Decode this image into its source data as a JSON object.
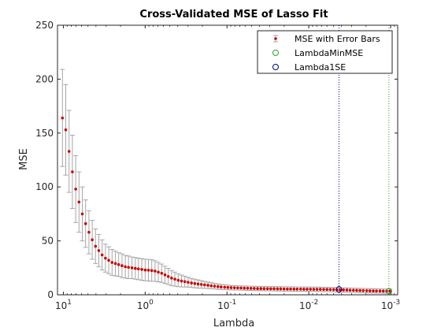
{
  "chart_data": {
    "type": "scatter",
    "title": "Cross-Validated MSE of Lasso Fit",
    "xlabel": "Lambda",
    "ylabel": "MSE",
    "x_scale": "log",
    "x_reversed": true,
    "xlim": [
      11.8,
      0.00082
    ],
    "ylim": [
      0,
      250
    ],
    "yticks": [
      0,
      50,
      100,
      150,
      200,
      250
    ],
    "xticks": [
      {
        "value": 10,
        "base": "10",
        "exp": "1"
      },
      {
        "value": 1,
        "base": "10",
        "exp": "0"
      },
      {
        "value": 0.1,
        "base": "10",
        "exp": "-1"
      },
      {
        "value": 0.01,
        "base": "10",
        "exp": "-2"
      },
      {
        "value": 0.001,
        "base": "10",
        "exp": "-3"
      }
    ],
    "grid": false,
    "legend_position": "top-right",
    "colors": {
      "mse_points": "#cc0000",
      "error_bars": "#a6a6a6",
      "lambda_min": "#2ca02c",
      "lambda_1se": "#00008b",
      "axes": "#262626"
    },
    "series": [
      {
        "name": "MSE with Error Bars",
        "marker": "point",
        "x": [
          10.26,
          9.35,
          8.52,
          7.76,
          7.07,
          6.44,
          5.87,
          5.35,
          4.87,
          4.44,
          4.05,
          3.69,
          3.36,
          3.06,
          2.79,
          2.54,
          2.31,
          2.11,
          1.92,
          1.75,
          1.6,
          1.45,
          1.32,
          1.21,
          1.1,
          1.0,
          0.913,
          0.832,
          0.758,
          0.691,
          0.629,
          0.573,
          0.522,
          0.476,
          0.434,
          0.395,
          0.36,
          0.328,
          0.299,
          0.272,
          0.248,
          0.226,
          0.206,
          0.188,
          0.171,
          0.156,
          0.142,
          0.129,
          0.118,
          0.107,
          0.0978,
          0.0891,
          0.0812,
          0.074,
          0.0674,
          0.0614,
          0.056,
          0.051,
          0.0465,
          0.0423,
          0.0386,
          0.0352,
          0.032,
          0.0292,
          0.0266,
          0.0242,
          0.0221,
          0.0201,
          0.0183,
          0.0167,
          0.0152,
          0.0139,
          0.0126,
          0.0115,
          0.0105,
          0.00956,
          0.00871,
          0.00794,
          0.00723,
          0.00659,
          0.006,
          0.00547,
          0.00498,
          0.00454,
          0.00414,
          0.00377,
          0.00343,
          0.00313,
          0.00285,
          0.0026,
          0.00237,
          0.00216,
          0.00196,
          0.00179,
          0.00163,
          0.00149,
          0.00135,
          0.00123,
          0.00112,
          0.00102
        ],
        "y": [
          164.0,
          153.0,
          133.0,
          114.0,
          98.0,
          86.0,
          75.0,
          66.0,
          58.0,
          51.0,
          45.0,
          41.0,
          37.0,
          34.0,
          32.0,
          30.0,
          29.0,
          28.0,
          27.0,
          26.0,
          25.5,
          25.0,
          24.5,
          24.0,
          23.5,
          23.0,
          22.8,
          22.5,
          22.0,
          21.0,
          20.0,
          18.5,
          17.0,
          15.5,
          14.5,
          13.5,
          12.8,
          12.2,
          11.6,
          11.0,
          10.5,
          10.0,
          9.6,
          9.2,
          8.8,
          8.4,
          8.0,
          7.6,
          7.3,
          7.0,
          6.8,
          6.6,
          6.5,
          6.4,
          6.3,
          6.2,
          6.1,
          6.0,
          5.9,
          5.8,
          5.8,
          5.7,
          5.7,
          5.6,
          5.6,
          5.5,
          5.5,
          5.4,
          5.4,
          5.4,
          5.3,
          5.3,
          5.3,
          5.2,
          5.2,
          5.2,
          5.1,
          5.1,
          5.1,
          5.0,
          5.0,
          4.9,
          4.8,
          4.7,
          4.6,
          4.5,
          4.4,
          4.3,
          4.2,
          4.1,
          4.0,
          3.9,
          3.8,
          3.7,
          3.6,
          3.5,
          3.5,
          3.4,
          3.4,
          3.3
        ],
        "error": [
          45,
          42,
          38,
          34,
          31,
          28,
          25,
          22,
          20,
          18,
          16,
          15,
          14,
          13,
          12.5,
          12,
          11.5,
          11,
          11,
          10.5,
          10.5,
          10,
          10,
          10,
          10,
          10,
          10,
          10,
          9.5,
          9,
          8.5,
          8,
          7.5,
          7,
          6.5,
          6,
          5.5,
          5,
          4.5,
          4.2,
          4,
          3.8,
          3.5,
          3.2,
          3,
          2.8,
          2.6,
          2.5,
          2.4,
          2.3,
          2.2,
          2.1,
          2.1,
          2.0,
          2.0,
          2.0,
          2.0,
          2.0,
          2.0,
          2.0,
          2.0,
          2.0,
          2.0,
          2.0,
          2.0,
          2.0,
          2.0,
          2.0,
          2.0,
          2.0,
          2.0,
          2.0,
          2.0,
          2.0,
          2.0,
          2.0,
          2.0,
          2.0,
          2.0,
          2.0,
          2.0,
          2.0,
          2.0,
          2.0,
          2.0,
          2.0,
          2.0,
          2.0,
          2.0,
          2.0,
          2.0,
          2.0,
          2.0,
          2.0,
          2.0,
          2.0,
          2.0,
          2.0,
          2.0,
          2.0
        ]
      },
      {
        "name": "LambdaMinMSE",
        "marker": "circle",
        "line": "dotted-vertical",
        "x": [
          0.00105
        ],
        "y": [
          3.3
        ]
      },
      {
        "name": "Lambda1SE",
        "marker": "circle",
        "line": "dotted-vertical",
        "x": [
          0.00428
        ],
        "y": [
          5.0
        ]
      }
    ]
  }
}
